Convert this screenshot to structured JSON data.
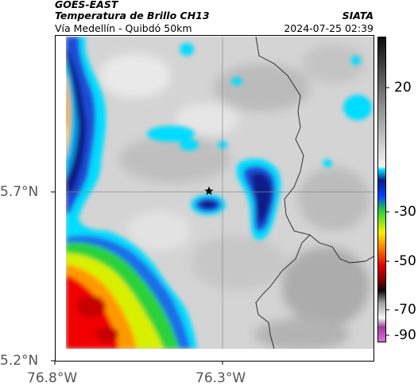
{
  "header": {
    "satellite": "GOES-EAST",
    "product": "Temperatura de Brillo CH13",
    "region": "Vía Medellín - Quibdó 50km",
    "agency": "SIATA",
    "datetime": "2024-07-25 02:39"
  },
  "axes": {
    "y_ticks": [
      {
        "label": "5.7°N",
        "value": 5.7
      },
      {
        "label": "5.2°N",
        "value": 5.2
      }
    ],
    "x_ticks": [
      {
        "label": "76.8°W",
        "value": -76.8
      },
      {
        "label": "76.3°W",
        "value": -76.3
      }
    ]
  },
  "colorbar": {
    "tick_labels": [
      "20",
      "-30",
      "-50",
      "-70",
      "-90"
    ],
    "tick_values": [
      20,
      -30,
      -50,
      -70,
      -90
    ],
    "range": [
      -95,
      40
    ],
    "colors": {
      "warm_gray": "#d2d2d2",
      "light_cyan": "#00e0ff",
      "deep_blue": "#0a1f86",
      "green": "#2ad13a",
      "yellow": "#f5f000",
      "orange": "#ff7a00",
      "red": "#e00000",
      "dark_red": "#520000",
      "magenta": "#c050c0"
    }
  },
  "map": {
    "center_marker_icon": "star-icon",
    "grid": true,
    "features": [
      "department-boundary",
      "cloud-tops"
    ]
  }
}
